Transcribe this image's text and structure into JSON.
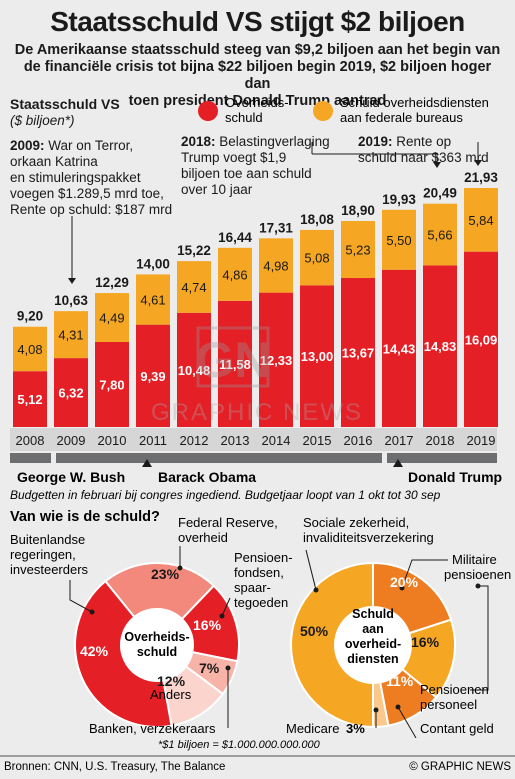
{
  "header": {
    "title": "Staatsschuld VS stijgt $2 biljoen",
    "subtitle_lines": [
      "De Amerikaanse staatsschuld steeg van $9,2 biljoen aan het begin van",
      "de financiële crisis tot bijna $22 biljoen begin 2019, $2 biljoen hoger dan",
      "toen president Donald Trump aantrad"
    ]
  },
  "colors": {
    "red": "#e41f26",
    "orange": "#f5a623",
    "bg": "#ececec",
    "dark_gray": "#6d6e70"
  },
  "chart_data": [
    {
      "type": "bar",
      "title": "Staatsschuld VS",
      "ylabel": "($ biljoen*)",
      "categories": [
        "2008",
        "2009",
        "2010",
        "2011",
        "2012",
        "2013",
        "2014",
        "2015",
        "2016",
        "2017",
        "2018",
        "2019"
      ],
      "series": [
        {
          "name": "Overheids-schuld",
          "color": "#e41f26",
          "values": [
            5.12,
            6.32,
            7.8,
            9.39,
            10.48,
            11.58,
            12.33,
            13.0,
            13.67,
            14.43,
            14.83,
            16.09
          ],
          "labels": [
            "5,12",
            "6,32",
            "7,80",
            "9,39",
            "10,48",
            "11,58",
            "12,33",
            "13,00",
            "13,67",
            "14,43",
            "14,83",
            "16,09"
          ]
        },
        {
          "name": "Schuld overheidsdiensten aan federale bureaus",
          "color": "#f5a623",
          "values": [
            4.08,
            4.31,
            4.49,
            4.61,
            4.74,
            4.86,
            4.98,
            5.08,
            5.23,
            5.5,
            5.66,
            5.84
          ],
          "labels": [
            "4,08",
            "4,31",
            "4,49",
            "4,61",
            "4,74",
            "4,86",
            "4,98",
            "5,08",
            "5,23",
            "5,50",
            "5,66",
            "5,84"
          ]
        }
      ],
      "totals": [
        9.2,
        10.63,
        12.29,
        14.0,
        15.22,
        16.44,
        17.31,
        18.08,
        18.9,
        19.93,
        20.49,
        21.93
      ],
      "total_labels": [
        "9,20",
        "10,63",
        "12,29",
        "14,00",
        "15,22",
        "16,44",
        "17,31",
        "18,08",
        "18,90",
        "19,93",
        "20,49",
        "21,93"
      ],
      "legend": [
        "Overheids-",
        "schuld",
        "Schuld overheidsdiensten",
        "aan federale bureaus"
      ],
      "ylim": [
        0,
        22.5
      ],
      "annotations": [
        {
          "year_bold": "2009:",
          "lines": [
            "War on Terror,",
            "orkaan Katrina",
            "en stimuleringspakket",
            "voegen $1.289,5 mrd toe,",
            "Rente op schuld: $187 mrd"
          ]
        },
        {
          "year_bold": "2018:",
          "lines": [
            "Belastingverlaging",
            "Trump voegt $1,9",
            "biljoen toe aan schuld",
            "over 10 jaar"
          ]
        },
        {
          "year_bold": "2019:",
          "lines": [
            "Rente op",
            "schuld naar $363 mrd"
          ]
        }
      ]
    },
    {
      "type": "pie",
      "title": "Van wie is de schuld?",
      "center_label": [
        "Overheids-",
        "schuld"
      ],
      "slices": [
        {
          "name": "Federal Reserve, overheid",
          "value": 23,
          "label": "23%",
          "color": "#f2897c"
        },
        {
          "name": "Pensioenfondsen, spaartegoeden",
          "value": 16,
          "label": "16%",
          "color": "#e41f26"
        },
        {
          "name": "Banken, verzekeraars",
          "value": 7,
          "label": "7%",
          "color": "#f7b3a8"
        },
        {
          "name": "Anders",
          "value": 12,
          "label": "12%",
          "color": "#fbd5cd"
        },
        {
          "name": "Buitenlandse regeringen, investeerders",
          "value": 42,
          "label": "42%",
          "color": "#e41f26"
        }
      ]
    },
    {
      "type": "pie",
      "center_label": [
        "Schuld",
        "aan",
        "overheid-",
        "diensten"
      ],
      "slices": [
        {
          "name": "Militaire pensioenen",
          "value": 20,
          "label": "20%",
          "color": "#ee7d22"
        },
        {
          "name": "Pensioenen personeel",
          "value": 16,
          "label": "16%",
          "color": "#f5a623"
        },
        {
          "name": "Contant geld",
          "value": 11,
          "label": "11%",
          "color": "#ee7d22"
        },
        {
          "name": "Medicare",
          "value": 3,
          "label": "3%",
          "color": "#fbc78a"
        },
        {
          "name": "Sociale zekerheid, invaliditeitsverzekering",
          "value": 50,
          "label": "50%",
          "color": "#f5a623"
        }
      ]
    }
  ],
  "presidents": [
    "George W. Bush",
    "Barack Obama",
    "Donald Trump"
  ],
  "budget_note": "Budgetten in februari bij congres ingediend. Budgetjaar loopt van 1 okt tot 30 sep",
  "pie_labels": {
    "fed": [
      "Federal Reserve,",
      "overheid"
    ],
    "foreign": [
      "Buitenlandse",
      "regeringen,",
      "investeerders"
    ],
    "pension": [
      "Pensioen-",
      "fondsen,",
      "spaar-",
      "tegoeden"
    ],
    "other": "Anders",
    "banks": "Banken, verzekeraars",
    "social": [
      "Sociale zekerheid,",
      "invaliditeitsverzekering"
    ],
    "military": [
      "Militaire",
      "pensioenen"
    ],
    "staff": [
      "Pensioenen",
      "personeel"
    ],
    "cash": "Contant geld",
    "medicare": "Medicare"
  },
  "footnote": "*$1 biljoen = $1.000.000.000.000",
  "footer": {
    "sources": "Bronnen: CNN, U.S. Treasury, The Balance",
    "credit": "© GRAPHIC NEWS"
  },
  "watermark": {
    "logo": "GN",
    "text": "GRAPHIC NEWS"
  }
}
